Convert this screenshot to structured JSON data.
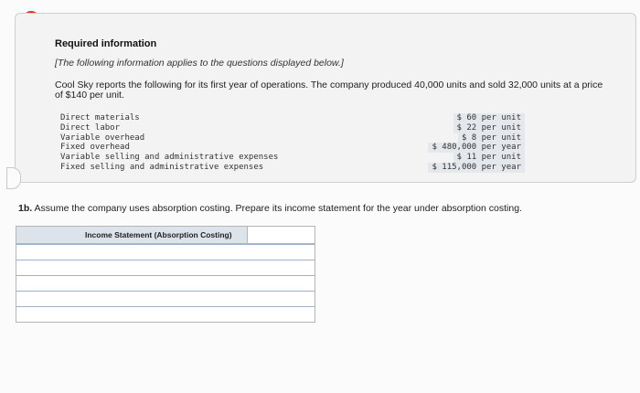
{
  "alert_icon": "exclamation-alert-icon",
  "alert_symbol": "!",
  "info": {
    "title": "Required information",
    "note": "[The following information applies to the questions displayed below.]",
    "intro": "Cool Sky reports the following for its first year of operations. The company produced 40,000 units and sold 32,000 units at a price of $140 per unit.",
    "facts": [
      {
        "label": "Direct materials",
        "value": "$ 60 per unit"
      },
      {
        "label": "Direct labor",
        "value": "$ 22 per unit"
      },
      {
        "label": "Variable overhead",
        "value": "$ 8 per unit"
      },
      {
        "label": "Fixed overhead",
        "value": "$ 480,000 per year"
      },
      {
        "label": "Variable selling and administrative expenses",
        "value": "$ 11 per unit"
      },
      {
        "label": "Fixed selling and administrative expenses",
        "value": "$ 115,000 per year"
      }
    ]
  },
  "question": {
    "number": "1b.",
    "text": " Assume the company uses absorption costing. Prepare its income statement for the year under absorption costing."
  },
  "statement": {
    "header": "Income Statement (Absorption Costing)",
    "rows": [
      {
        "label": "",
        "value": ""
      },
      {
        "label": "",
        "value": ""
      },
      {
        "label": "",
        "value": ""
      },
      {
        "label": "",
        "value": ""
      },
      {
        "label": "",
        "value": ""
      }
    ]
  }
}
